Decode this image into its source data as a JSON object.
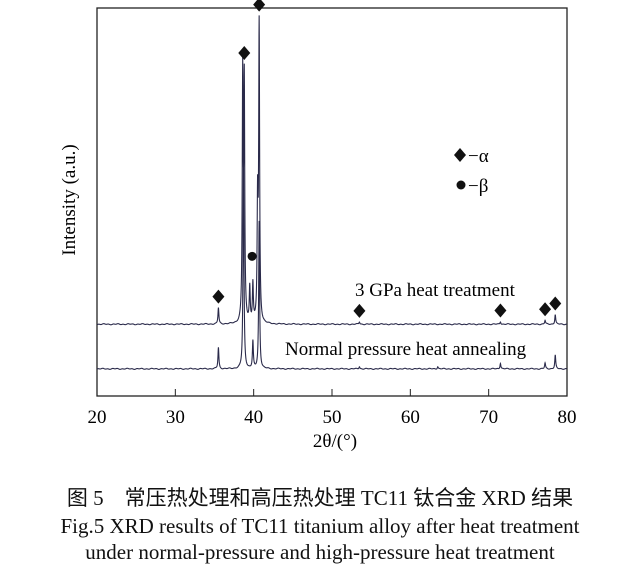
{
  "chart_data": {
    "type": "line",
    "xlabel": "2θ/(°)",
    "ylabel": "Intensity (a.u.)",
    "xlim": [
      20,
      80
    ],
    "xticks": [
      20,
      30,
      40,
      50,
      60,
      70,
      80
    ],
    "ylim": [
      0,
      100
    ],
    "grid": false,
    "legend": {
      "placement": "top-right",
      "entries": [
        {
          "marker": "diamond",
          "label": "−α"
        },
        {
          "marker": "circle",
          "label": "−β"
        }
      ]
    },
    "series": [
      {
        "name": "3 GPa heat treatment",
        "baseline": 18.5,
        "peaks": [
          [
            35.5,
            4.2
          ],
          [
            38.6,
            62
          ],
          [
            38.8,
            60
          ],
          [
            39.5,
            9
          ],
          [
            39.9,
            10
          ],
          [
            40.5,
            30
          ],
          [
            40.7,
            76
          ],
          [
            53.5,
            0.6
          ],
          [
            71.5,
            0.7
          ],
          [
            77.2,
            1.0
          ],
          [
            78.5,
            2.5
          ]
        ]
      },
      {
        "name": "Normal pressure heat annealing",
        "baseline": 7.0,
        "peaks": [
          [
            35.5,
            5.5
          ],
          [
            38.7,
            55
          ],
          [
            39.9,
            7
          ],
          [
            40.7,
            38
          ],
          [
            53.5,
            0.6
          ],
          [
            63.5,
            0.6
          ],
          [
            71.5,
            1.5
          ],
          [
            77.2,
            1.5
          ],
          [
            78.5,
            3.5
          ]
        ]
      }
    ],
    "annotations": [
      {
        "marker": "diamond",
        "phase": "α",
        "x": 35.5
      },
      {
        "marker": "diamond",
        "phase": "α",
        "x": 38.8
      },
      {
        "marker": "diamond",
        "phase": "α",
        "x": 40.7
      },
      {
        "marker": "circle",
        "phase": "β",
        "x": 39.8
      },
      {
        "marker": "diamond",
        "phase": "α",
        "x": 53.5
      },
      {
        "marker": "diamond",
        "phase": "α",
        "x": 71.5
      },
      {
        "marker": "diamond",
        "phase": "α",
        "x": 77.2
      },
      {
        "marker": "diamond",
        "phase": "α",
        "x": 78.5
      }
    ],
    "line_color": "#2a2a4a"
  },
  "caption": {
    "zh": "图 5　常压热处理和高压热处理 TC11 钛合金 XRD 结果",
    "en_line1": "Fig.5 XRD results of TC11 titanium alloy after heat treatment",
    "en_line2": "under normal-pressure and high-pressure heat treatment"
  }
}
